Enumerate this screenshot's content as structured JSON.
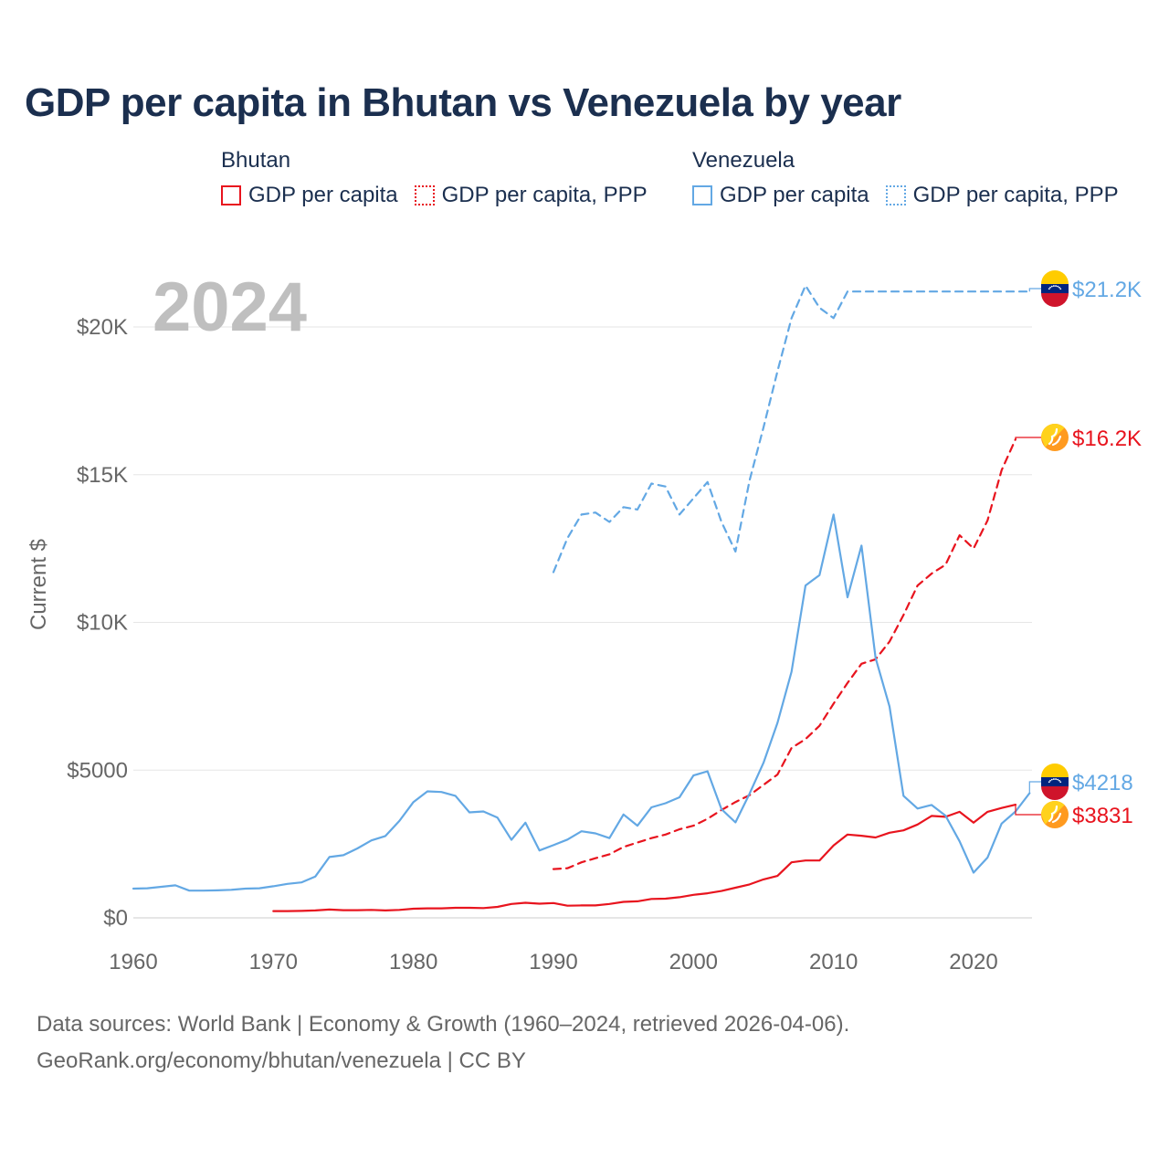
{
  "title": "GDP per capita in Bhutan vs Venezuela by year",
  "legend": {
    "groups": [
      {
        "name": "Bhutan",
        "color": "#e8141e",
        "items": [
          {
            "label": "GDP per capita",
            "style": "solid"
          },
          {
            "label": "GDP per capita, PPP",
            "style": "dotted"
          }
        ]
      },
      {
        "name": "Venezuela",
        "color": "#63a8e4",
        "items": [
          {
            "label": "GDP per capita",
            "style": "solid"
          },
          {
            "label": "GDP per capita, PPP",
            "style": "dotted"
          }
        ]
      }
    ]
  },
  "year_label": "2024",
  "footer": {
    "line1": "Data sources: World Bank | Economy & Growth (1960–2024, retrieved 2026-04-06).",
    "line2": "GeoRank.org/economy/bhutan/venezuela | CC BY"
  },
  "chart_data": {
    "type": "line",
    "title": "GDP per capita in Bhutan vs Venezuela by year",
    "xlabel": "",
    "ylabel": "Current $",
    "xlim": [
      1960,
      2024
    ],
    "ylim": [
      0,
      22000
    ],
    "x_ticks": [
      1960,
      1970,
      1980,
      1990,
      2000,
      2010,
      2020
    ],
    "y_ticks": [
      0,
      5000,
      10000,
      15000,
      20000
    ],
    "y_tick_labels": [
      "$0",
      "$5000",
      "$10K",
      "$15K",
      "$20K"
    ],
    "grid": true,
    "series": [
      {
        "name": "Bhutan GDP per capita",
        "country": "Bhutan",
        "color": "#e8141e",
        "dash": "solid",
        "x": [
          1970,
          1971,
          1972,
          1973,
          1974,
          1975,
          1976,
          1977,
          1978,
          1979,
          1980,
          1981,
          1982,
          1983,
          1984,
          1985,
          1986,
          1987,
          1988,
          1989,
          1990,
          1991,
          1992,
          1993,
          1994,
          1995,
          1996,
          1997,
          1998,
          1999,
          2000,
          2001,
          2002,
          2003,
          2004,
          2005,
          2006,
          2007,
          2008,
          2009,
          2010,
          2011,
          2012,
          2013,
          2014,
          2015,
          2016,
          2017,
          2018,
          2019,
          2020,
          2021,
          2022,
          2023
        ],
        "values": [
          230,
          230,
          235,
          250,
          280,
          260,
          260,
          270,
          250,
          270,
          310,
          320,
          320,
          340,
          340,
          330,
          370,
          470,
          510,
          480,
          500,
          410,
          420,
          420,
          470,
          540,
          560,
          640,
          650,
          700,
          780,
          830,
          910,
          1020,
          1130,
          1300,
          1420,
          1880,
          1940,
          1940,
          2450,
          2820,
          2780,
          2720,
          2880,
          2960,
          3160,
          3450,
          3420,
          3590,
          3220,
          3590,
          3720,
          3831
        ],
        "end_label": "$3831"
      },
      {
        "name": "Bhutan GDP per capita, PPP",
        "country": "Bhutan",
        "color": "#e8141e",
        "dash": "dashed",
        "x": [
          1990,
          1991,
          1992,
          1993,
          1994,
          1995,
          1996,
          1997,
          1998,
          1999,
          2000,
          2001,
          2002,
          2003,
          2004,
          2005,
          2006,
          2007,
          2008,
          2009,
          2010,
          2011,
          2012,
          2013,
          2014,
          2015,
          2016,
          2017,
          2018,
          2019,
          2020,
          2021,
          2022,
          2023
        ],
        "values": [
          1650,
          1680,
          1880,
          2020,
          2150,
          2400,
          2550,
          2700,
          2820,
          3000,
          3120,
          3350,
          3650,
          3920,
          4150,
          4500,
          4850,
          5750,
          6050,
          6500,
          7250,
          7950,
          8600,
          8750,
          9350,
          10250,
          11250,
          11650,
          11950,
          12950,
          12500,
          13450,
          15150,
          16200
        ],
        "end_label": "$16.2K"
      },
      {
        "name": "Venezuela GDP per capita",
        "country": "Venezuela",
        "color": "#63a8e4",
        "dash": "solid",
        "x": [
          1960,
          1961,
          1962,
          1963,
          1964,
          1965,
          1966,
          1967,
          1968,
          1969,
          1970,
          1971,
          1972,
          1973,
          1974,
          1975,
          1976,
          1977,
          1978,
          1979,
          1980,
          1981,
          1982,
          1983,
          1984,
          1985,
          1986,
          1987,
          1988,
          1989,
          1990,
          1991,
          1992,
          1993,
          1994,
          1995,
          1996,
          1997,
          1998,
          1999,
          2000,
          2001,
          2002,
          2003,
          2004,
          2005,
          2006,
          2007,
          2008,
          2009,
          2010,
          2011,
          2012,
          2013,
          2014,
          2015,
          2016,
          2017,
          2018,
          2019,
          2020,
          2021,
          2022,
          2023,
          2024
        ],
        "values": [
          990,
          1000,
          1050,
          1100,
          920,
          920,
          930,
          950,
          990,
          1000,
          1070,
          1150,
          1200,
          1400,
          2060,
          2120,
          2350,
          2620,
          2770,
          3280,
          3920,
          4280,
          4260,
          4130,
          3570,
          3600,
          3390,
          2640,
          3220,
          2280,
          2460,
          2650,
          2930,
          2860,
          2700,
          3500,
          3120,
          3740,
          3880,
          4080,
          4820,
          4960,
          3680,
          3230,
          4200,
          5250,
          6600,
          8330,
          11250,
          11600,
          13650,
          10850,
          12600,
          8800,
          7150,
          4130,
          3700,
          3820,
          3460,
          2590,
          1530,
          2040,
          3190,
          3600,
          4218
        ],
        "end_label": "$4218"
      },
      {
        "name": "Venezuela GDP per capita, PPP",
        "country": "Venezuela",
        "color": "#63a8e4",
        "dash": "dashed",
        "x": [
          1990,
          1991,
          1992,
          1993,
          1994,
          1995,
          1996,
          1997,
          1998,
          1999,
          2000,
          2001,
          2002,
          2003,
          2004,
          2005,
          2006,
          2007,
          2008,
          2009,
          2010,
          2011,
          2024
        ],
        "values": [
          11700,
          12850,
          13650,
          13720,
          13400,
          13900,
          13820,
          14700,
          14600,
          13650,
          14200,
          14750,
          13400,
          12400,
          14800,
          16600,
          18500,
          20300,
          21400,
          20650,
          20300,
          21200,
          21200
        ],
        "end_label": "$21.2K"
      }
    ]
  }
}
